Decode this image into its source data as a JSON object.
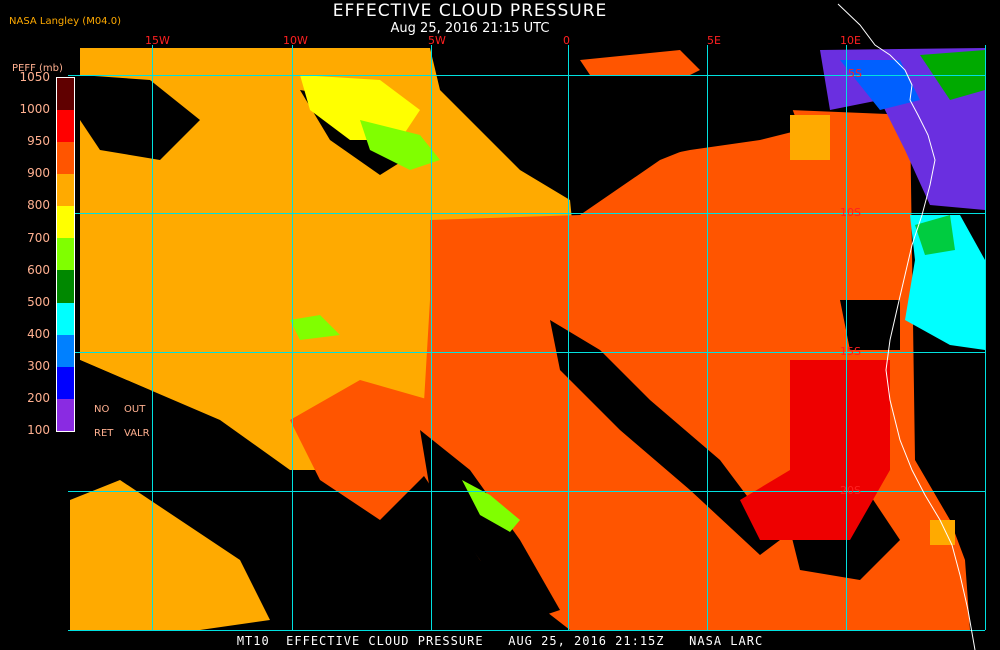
{
  "header": {
    "title": "EFFECTIVE CLOUD PRESSURE",
    "subtitle": "Aug 25, 2016 21:15 UTC",
    "source": "NASA Langley (M04.0)"
  },
  "legend": {
    "title": "PEFF (mb)",
    "ticks": [
      "1050",
      "1000",
      "950",
      "900",
      "800",
      "700",
      "600",
      "500",
      "400",
      "300",
      "200",
      "100"
    ],
    "colors": [
      "#600000",
      "#ff0000",
      "#ff5500",
      "#ffaa00",
      "#ffff00",
      "#80ff00",
      "#008800",
      "#00ffff",
      "#0080ff",
      "#0000ff",
      "#8a2be2"
    ],
    "no_ret": [
      "NO",
      "RET"
    ],
    "out_valr": [
      "OUT",
      "VALR"
    ]
  },
  "map": {
    "longitudes": [
      "15W",
      "10W",
      "5W",
      "0",
      "5E",
      "10E"
    ],
    "latitudes": [
      "5S",
      "10S",
      "15S",
      "20S"
    ],
    "grid_color": "#00e0e0",
    "coastline_color": "#ffffff"
  },
  "footer": "MT10  EFFECTIVE CLOUD PRESSURE   AUG 25, 2016 21:15Z   NASA LARC"
}
